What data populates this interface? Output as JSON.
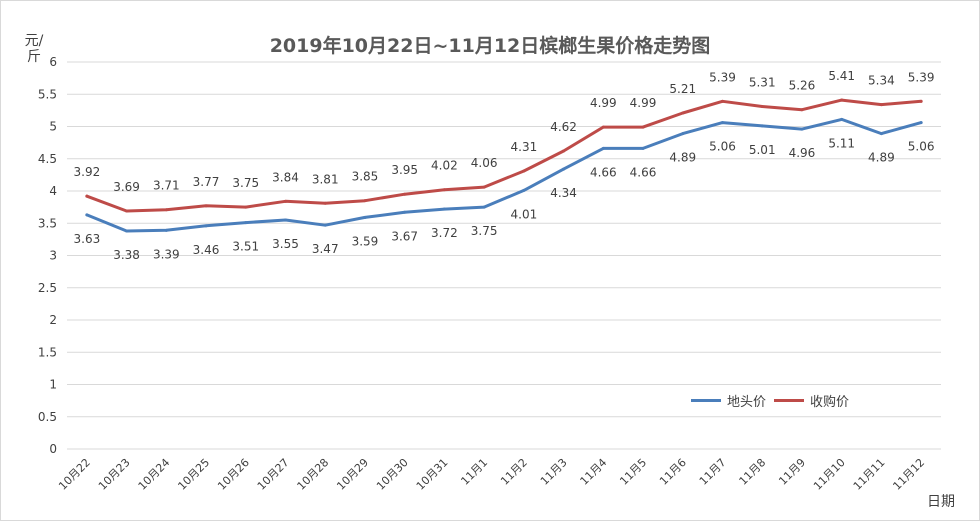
{
  "chart_data": {
    "type": "line",
    "title": "2019年10月22日~11月12日槟榔生果价格走势图",
    "ylabel": "元/斤",
    "xlabel": "日期",
    "ylim": [
      0,
      6
    ],
    "yticks": [
      "0",
      "0.5",
      "1",
      "1.5",
      "2",
      "2.5",
      "3",
      "3.5",
      "4",
      "4.5",
      "5",
      "5.5",
      "6"
    ],
    "grid": true,
    "legend_position": "bottom-right",
    "categories": [
      "10月22",
      "10月23",
      "10月24",
      "10月25",
      "10月26",
      "10月27",
      "10月28",
      "10月29",
      "10月30",
      "10月31",
      "11月1",
      "11月2",
      "11月3",
      "11月4",
      "11月5",
      "11月6",
      "11月7",
      "11月8",
      "11月9",
      "11月10",
      "11月11",
      "11月12"
    ],
    "series": [
      {
        "name": "地头价",
        "color": "#4a7ebb",
        "values": [
          3.63,
          3.38,
          3.39,
          3.46,
          3.51,
          3.55,
          3.47,
          3.59,
          3.67,
          3.72,
          3.75,
          4.01,
          4.34,
          4.66,
          4.66,
          4.89,
          5.06,
          5.01,
          4.96,
          5.11,
          4.89,
          5.06
        ],
        "value_labels": [
          "3.63",
          "3.38",
          "3.39",
          "3.46",
          "3.51",
          "3.55",
          "3.47",
          "3.59",
          "3.67",
          "3.72",
          "3.75",
          "4.01",
          "4.34",
          "4.66",
          "4.66",
          "4.89",
          "5.06",
          "5.01",
          "4.96",
          "5.11",
          "4.89",
          "5.06"
        ]
      },
      {
        "name": "收购价",
        "color": "#be4b48",
        "values": [
          3.92,
          3.69,
          3.71,
          3.77,
          3.75,
          3.84,
          3.81,
          3.85,
          3.95,
          4.02,
          4.06,
          4.31,
          4.62,
          4.99,
          4.99,
          5.21,
          5.39,
          5.31,
          5.26,
          5.41,
          5.34,
          5.39
        ],
        "value_labels": [
          "3.92",
          "3.69",
          "3.71",
          "3.77",
          "3.75",
          "3.84",
          "3.81",
          "3.85",
          "3.95",
          "4.02",
          "4.06",
          "4.31",
          "4.62",
          "4.99",
          "4.99",
          "5.21",
          "5.39",
          "5.31",
          "5.26",
          "5.41",
          "5.34",
          "5.39"
        ]
      }
    ]
  }
}
